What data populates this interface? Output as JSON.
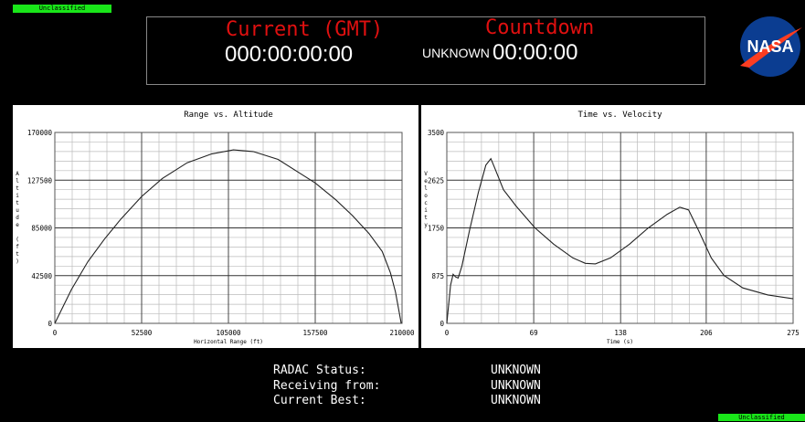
{
  "banners": {
    "top": "Unclassified",
    "bottom": "Unclassified"
  },
  "clock": {
    "current_label": "Current (GMT)",
    "current_value": "000:00:00:00",
    "countdown_label": "Countdown",
    "countdown_status": "UNKNOWN",
    "countdown_value": "00:00:00"
  },
  "logo": "NASA",
  "chart_data": [
    {
      "type": "line",
      "title": "Range vs. Altitude",
      "x_label": "Horizontal Range (ft)",
      "y_label": "Altitude (ft)",
      "x": [
        0,
        10000,
        20000,
        30000,
        40000,
        52500,
        65000,
        80000,
        95000,
        108000,
        120000,
        135000,
        150000,
        157500,
        170000,
        180000,
        190000,
        198000,
        203000,
        206000,
        208000,
        209500
      ],
      "values": [
        0,
        30000,
        55000,
        75000,
        93000,
        113000,
        129000,
        143000,
        151000,
        154500,
        153000,
        146000,
        132000,
        125000,
        110000,
        96000,
        80000,
        64000,
        45000,
        28000,
        12000,
        0
      ],
      "color": "#222222",
      "xlim": [
        0,
        210000
      ],
      "xticks": [
        0,
        52500,
        105000,
        157500,
        210000
      ],
      "ylim": [
        0,
        170000
      ],
      "yticks": [
        0,
        42500,
        85000,
        127500,
        170000
      ],
      "grid": true
    },
    {
      "type": "line",
      "title": "Time vs. Velocity",
      "x_label": "Time (s)",
      "y_label": "Velocity",
      "x": [
        0,
        3,
        5,
        7,
        9,
        12,
        18,
        25,
        31,
        35,
        38,
        45,
        55,
        70,
        85,
        100,
        110,
        118,
        130,
        145,
        160,
        175,
        185,
        192,
        200,
        210,
        220,
        235,
        255,
        275
      ],
      "values": [
        0,
        700,
        900,
        850,
        830,
        1050,
        1700,
        2400,
        2900,
        3020,
        2850,
        2450,
        2150,
        1750,
        1450,
        1200,
        1100,
        1090,
        1200,
        1450,
        1750,
        2000,
        2130,
        2080,
        1700,
        1200,
        880,
        650,
        520,
        450
      ],
      "color": "#222222",
      "xlim": [
        0,
        275
      ],
      "xticks": [
        0,
        69,
        138,
        206,
        275
      ],
      "ylim": [
        0,
        3500
      ],
      "yticks": [
        0,
        875,
        1750,
        2625,
        3500
      ],
      "grid": true
    }
  ],
  "status": {
    "rows": [
      [
        "RADAC Status:",
        "UNKNOWN"
      ],
      [
        "Receiving from:",
        "UNKNOWN"
      ],
      [
        "Current Best:",
        "UNKNOWN"
      ]
    ]
  }
}
